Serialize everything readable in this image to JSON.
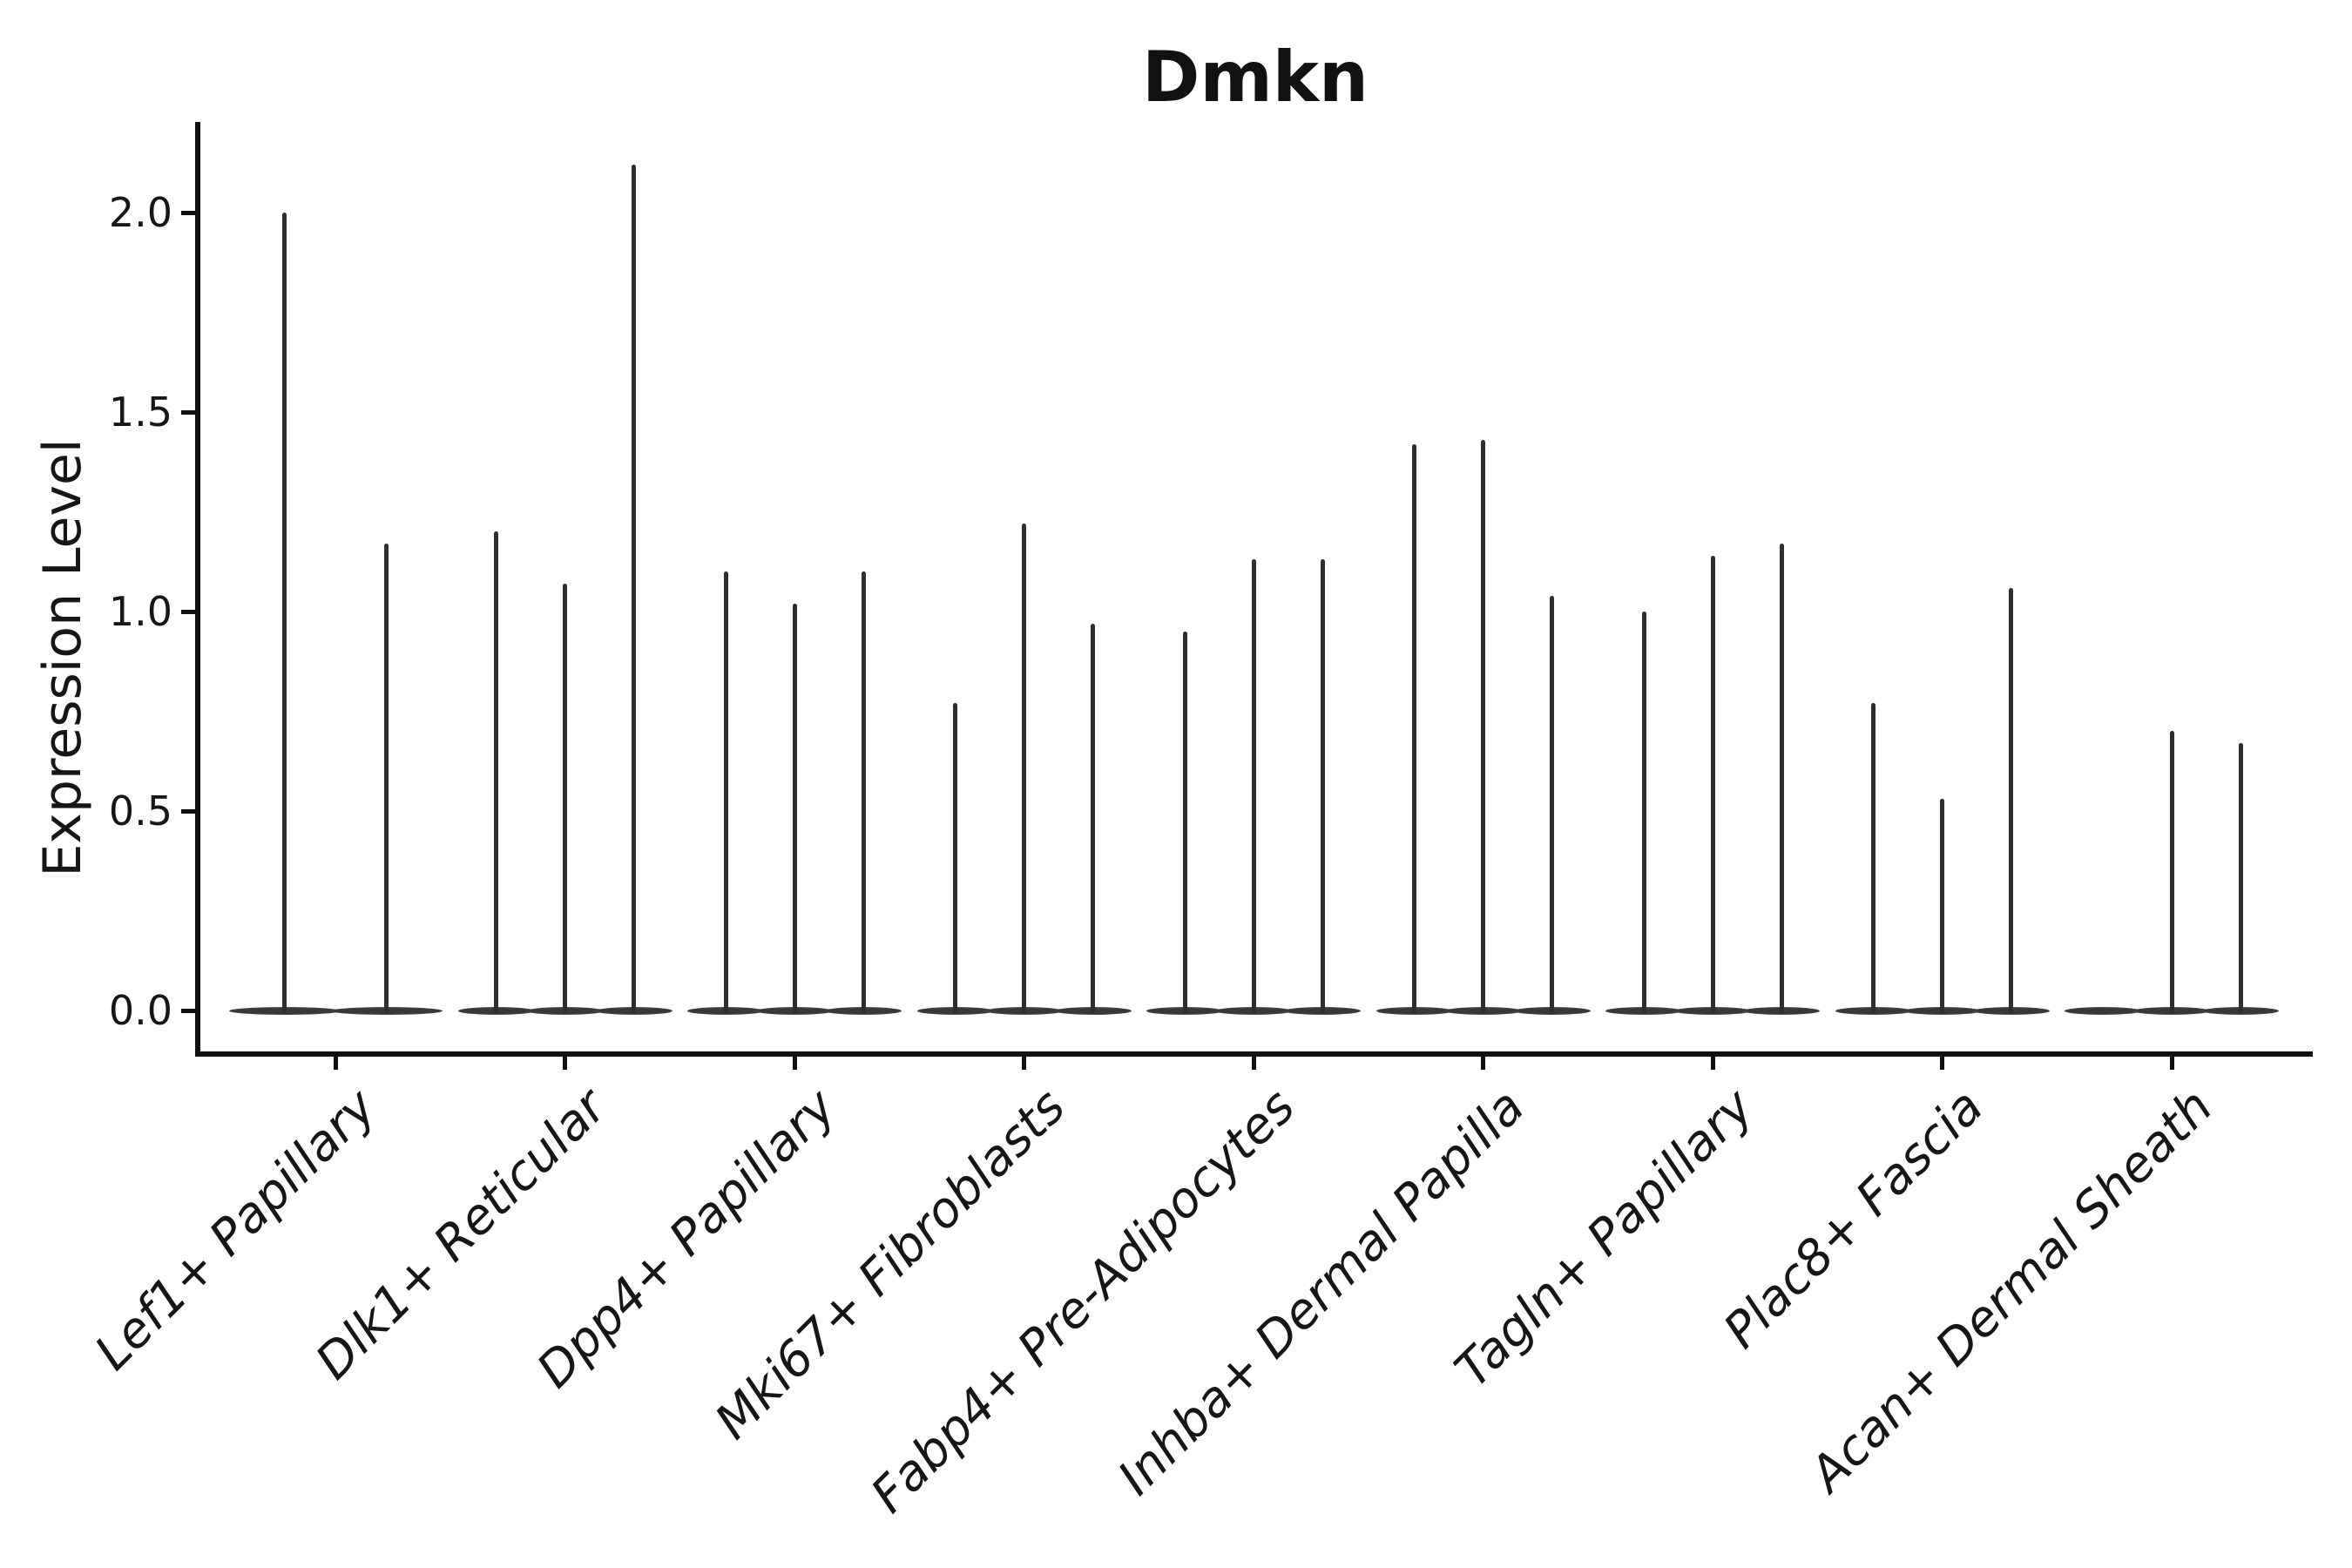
{
  "title": "Dmkn",
  "y_axis_label": "Expression Level",
  "chart_data": {
    "type": "violin",
    "title": "Dmkn",
    "xlabel": "",
    "ylabel": "Expression Level",
    "ylim": [
      0,
      2.22
    ],
    "yticks": [
      0.0,
      0.5,
      1.0,
      1.5,
      2.0
    ],
    "ytick_labels": [
      "0.0",
      "0.5",
      "1.0",
      "1.5",
      "2.0"
    ],
    "grid": false,
    "legend_position": "none",
    "categories": [
      "Lef1+ Papillary",
      "Dlk1+ Reticular",
      "Dpp4+ Papillary",
      "Mki67+ Fibroblasts",
      "Fabp4+ Pre-Adipocytes",
      "Inhba+ Dermal Papilla",
      "Tagln+ Papillary",
      "Plac8+ Fascia",
      "Acan+ Dermal Sheath"
    ],
    "series_note": "Each category shows 2-3 thin violins; most mass sits at expression 0 (flat wide base) with a narrow spike up to the max expression value. A value of 0 means a flat violin with no spike.",
    "series": [
      {
        "category": "Lef1+ Papillary",
        "violin_max_values": [
          2.0,
          1.17
        ]
      },
      {
        "category": "Dlk1+ Reticular",
        "violin_max_values": [
          1.2,
          1.07,
          2.12
        ]
      },
      {
        "category": "Dpp4+ Papillary",
        "violin_max_values": [
          1.1,
          1.02,
          1.1
        ]
      },
      {
        "category": "Mki67+ Fibroblasts",
        "violin_max_values": [
          0.77,
          1.22,
          0.97
        ]
      },
      {
        "category": "Fabp4+ Pre-Adipocytes",
        "violin_max_values": [
          0.95,
          1.13,
          1.13
        ]
      },
      {
        "category": "Inhba+ Dermal Papilla",
        "violin_max_values": [
          1.42,
          1.43,
          1.04
        ]
      },
      {
        "category": "Tagln+ Papillary",
        "violin_max_values": [
          1.0,
          1.14,
          1.17
        ]
      },
      {
        "category": "Plac8+ Fascia",
        "violin_max_values": [
          0.77,
          0.53,
          1.06
        ]
      },
      {
        "category": "Acan+ Dermal Sheath",
        "violin_max_values": [
          0.0,
          0.7,
          0.67
        ]
      }
    ],
    "colors": {
      "violin_fill": "#383838",
      "violin_spike": "#2e2e2e",
      "axis": "#111111",
      "text": "#161616",
      "background": "#ffffff"
    }
  }
}
